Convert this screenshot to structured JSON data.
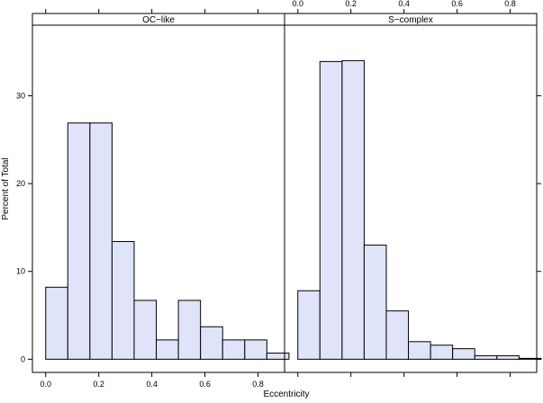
{
  "chart_data": {
    "type": "bar",
    "title": "",
    "xlabel": "Eccentricity",
    "ylabel": "Percent of Total",
    "xlim": [
      -0.05,
      0.9
    ],
    "ylim": [
      -1.5,
      36.5
    ],
    "x_ticks": [
      0.0,
      0.2,
      0.4,
      0.6,
      0.8
    ],
    "x_tick_labels": [
      "0.0",
      "0.2",
      "0.4",
      "0.6",
      "0.8"
    ],
    "y_ticks": [
      0,
      10,
      20,
      30
    ],
    "y_tick_labels": [
      "0",
      "10",
      "20",
      "30"
    ],
    "bin_edges": [
      0.0,
      0.0833,
      0.1667,
      0.25,
      0.3333,
      0.4167,
      0.5,
      0.5833,
      0.6667,
      0.75,
      0.8333,
      0.9167
    ],
    "bar_color": "#e0e4fa",
    "panels": [
      {
        "strip_label": "OC−like",
        "values": [
          8.2,
          26.9,
          26.9,
          13.4,
          6.7,
          2.2,
          6.7,
          3.7,
          2.2,
          2.2,
          0.7
        ]
      },
      {
        "strip_label": "S−complex",
        "values": [
          7.8,
          33.9,
          34.0,
          13.0,
          5.5,
          2.0,
          1.6,
          1.2,
          0.4,
          0.4,
          0.1
        ]
      }
    ]
  }
}
